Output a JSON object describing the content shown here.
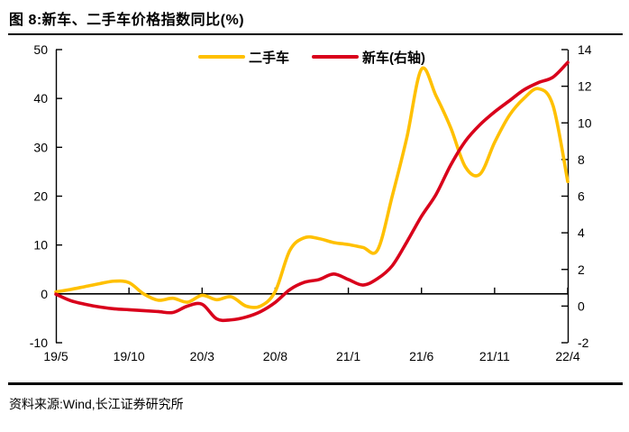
{
  "title": "图 8:新车、二手车价格指数同比(%)",
  "source": "资料来源:Wind,长江证券研究所",
  "colors": {
    "used_car": "#FFC000",
    "new_car": "#D9001B",
    "axis": "#000000",
    "background": "#FFFFFF"
  },
  "legend": {
    "used_car_label": "二手车",
    "new_car_label": "新车(右轴)"
  },
  "chart_data": {
    "type": "line",
    "title": "新车、二手车价格指数同比(%)",
    "grid": false,
    "legend_position": "top-center",
    "categories": [
      "19/5",
      "19/6",
      "19/7",
      "19/8",
      "19/9",
      "19/10",
      "19/11",
      "19/12",
      "20/1",
      "20/2",
      "20/3",
      "20/4",
      "20/5",
      "20/6",
      "20/7",
      "20/8",
      "20/9",
      "20/10",
      "20/11",
      "20/12",
      "21/1",
      "21/2",
      "21/3",
      "21/4",
      "21/5",
      "21/6",
      "21/7",
      "21/8",
      "21/9",
      "21/10",
      "21/11",
      "21/12",
      "22/1",
      "22/2",
      "22/3",
      "22/4"
    ],
    "x_tick_labels": [
      "19/5",
      "19/10",
      "20/3",
      "20/8",
      "21/1",
      "21/6",
      "21/11",
      "22/4"
    ],
    "x_tick_indices": [
      0,
      5,
      10,
      15,
      20,
      25,
      30,
      35
    ],
    "series": [
      {
        "name": "二手车",
        "axis": "left",
        "color": "#FFC000",
        "values": [
          0.4,
          0.9,
          1.5,
          2.1,
          2.6,
          2.3,
          0.0,
          -1.3,
          -0.9,
          -1.7,
          -0.3,
          -1.2,
          -0.6,
          -2.5,
          -2.5,
          0.5,
          8.9,
          11.5,
          11.3,
          10.5,
          10.1,
          9.5,
          9.0,
          20.0,
          32.0,
          46.0,
          40.5,
          34.0,
          26.0,
          24.5,
          31.0,
          36.5,
          40.0,
          42.0,
          38.5,
          23.0
        ]
      },
      {
        "name": "新车(右轴)",
        "axis": "right",
        "color": "#D9001B",
        "values": [
          0.65,
          0.3,
          0.1,
          -0.05,
          -0.15,
          -0.2,
          -0.25,
          -0.3,
          -0.35,
          0.0,
          0.1,
          -0.7,
          -0.75,
          -0.6,
          -0.3,
          0.2,
          0.9,
          1.3,
          1.45,
          1.75,
          1.45,
          1.15,
          1.5,
          2.2,
          3.5,
          4.9,
          6.1,
          7.7,
          9.0,
          9.9,
          10.6,
          11.2,
          11.8,
          12.2,
          12.5,
          13.3
        ]
      }
    ],
    "left_axis": {
      "min": -10,
      "max": 50,
      "ticks": [
        50,
        40,
        30,
        20,
        10,
        0,
        -10
      ]
    },
    "right_axis": {
      "min": -2,
      "max": 14,
      "ticks": [
        14,
        12,
        10,
        8,
        6,
        4,
        2,
        0,
        -2
      ]
    }
  }
}
